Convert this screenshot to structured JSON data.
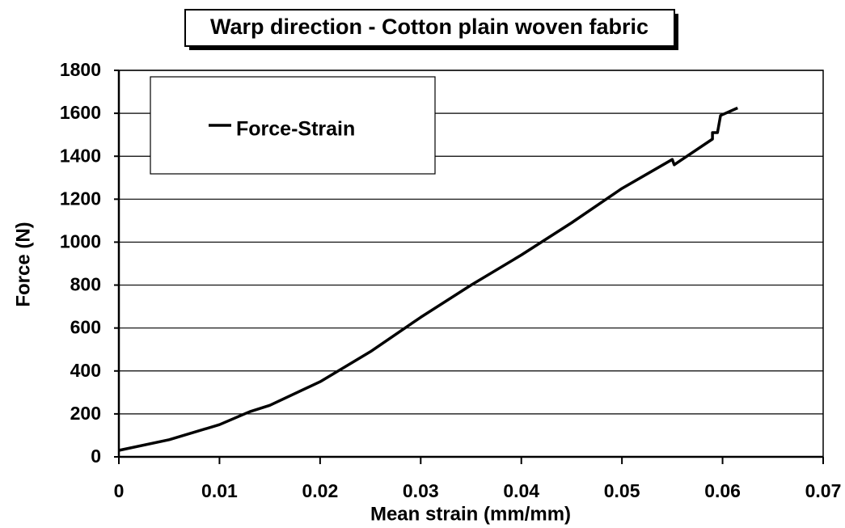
{
  "chart_data": {
    "type": "line",
    "title": "Warp direction - Cotton plain woven fabric",
    "xlabel": "Mean strain (mm/mm)",
    "ylabel": "Force (N)",
    "x": [
      0,
      0.005,
      0.01,
      0.013,
      0.015,
      0.02,
      0.025,
      0.03,
      0.035,
      0.04,
      0.045,
      0.05,
      0.055,
      0.0552,
      0.0555,
      0.059,
      0.059,
      0.0595,
      0.0598,
      0.0615
    ],
    "series": [
      {
        "name": "Force-Strain",
        "color": "#000000",
        "values": [
          30,
          80,
          150,
          210,
          240,
          350,
          490,
          650,
          800,
          940,
          1090,
          1250,
          1385,
          1360,
          1370,
          1480,
          1510,
          1510,
          1590,
          1625
        ]
      }
    ],
    "xlim": [
      0,
      0.07
    ],
    "xticks": [
      0,
      0.01,
      0.02,
      0.03,
      0.04,
      0.05,
      0.06,
      0.07
    ],
    "ylim": [
      0,
      1800
    ],
    "yticks": [
      0,
      200,
      400,
      600,
      800,
      1000,
      1200,
      1400,
      1600,
      1800
    ],
    "grid": true,
    "legend": "upper left"
  }
}
